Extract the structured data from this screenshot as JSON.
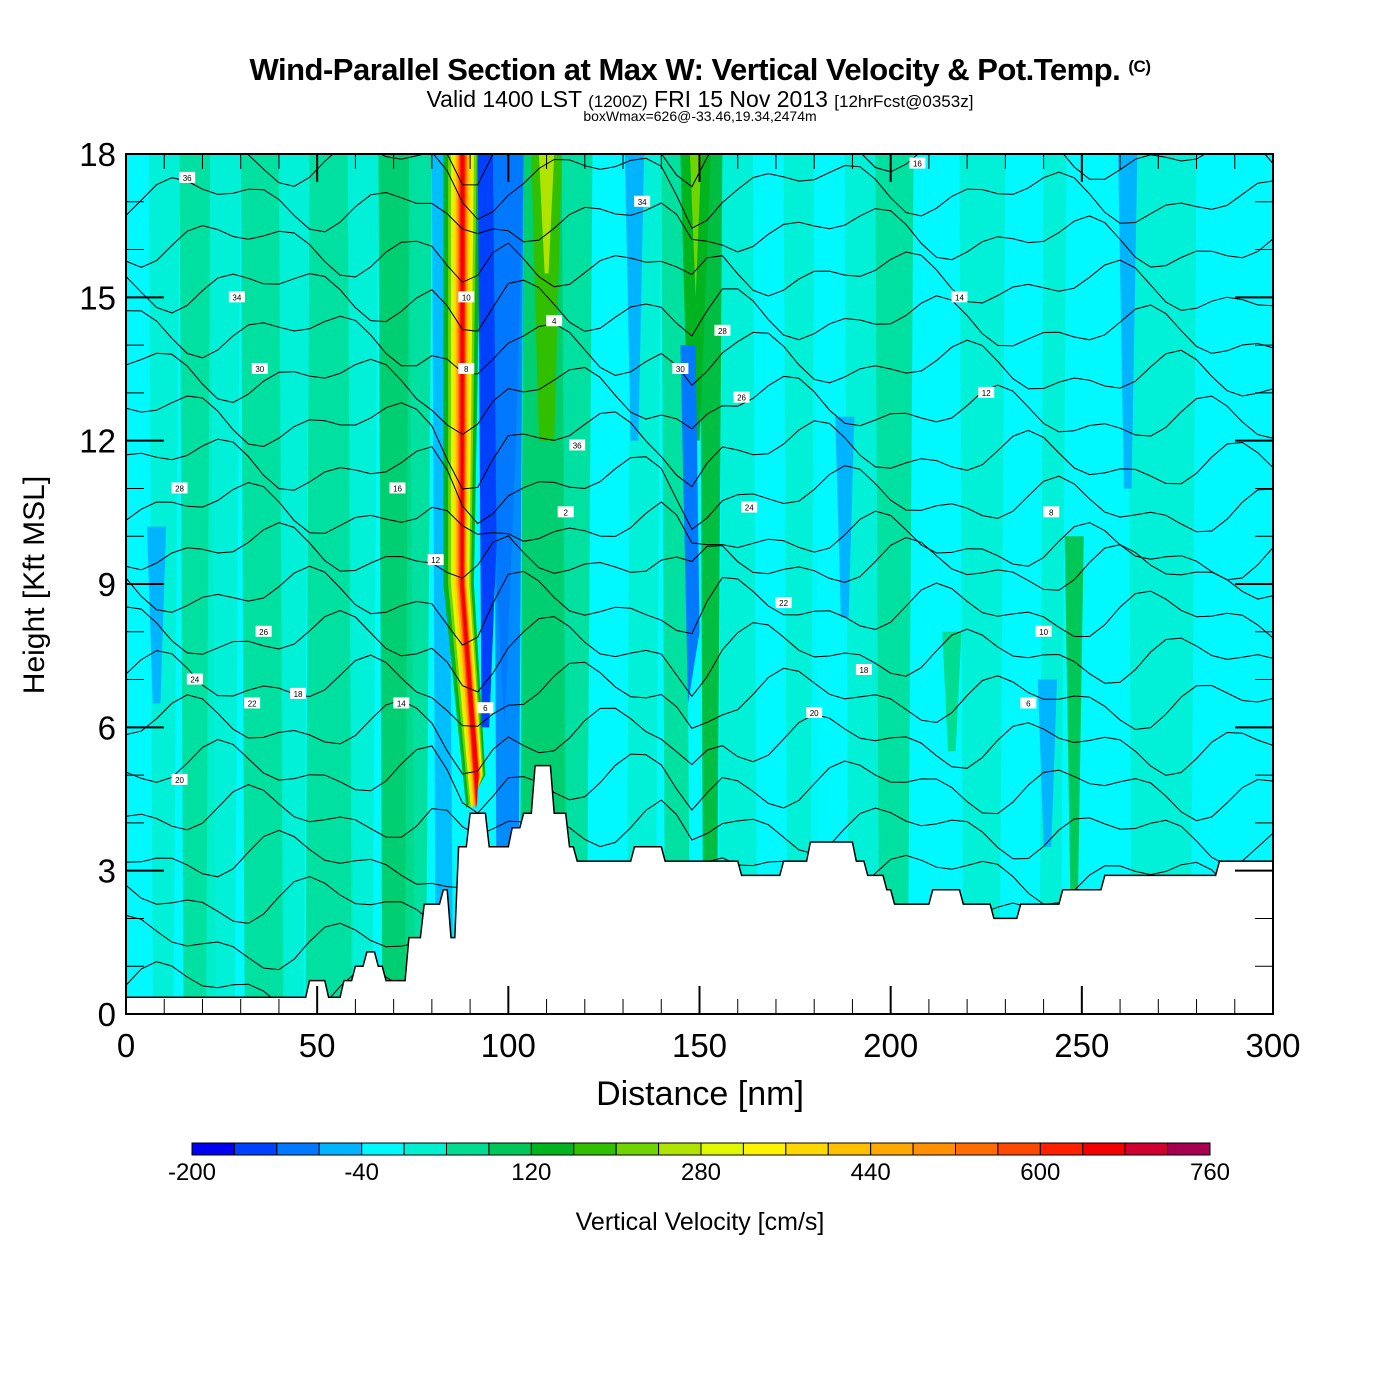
{
  "header": {
    "title": "Wind-Parallel Section at Max W: Vertical Velocity & Pot.Temp.",
    "copyright": "(C)",
    "valid_prefix": "Valid 1400 LST",
    "valid_utc": "(1200Z)",
    "valid_date": "FRI 15 Nov 2013",
    "forecast": "[12hrFcst@0353z]",
    "box_info": "boxWmax=626@-33.46,19.34,2474m"
  },
  "chart_data": {
    "type": "heatmap",
    "title": "Wind-Parallel Section at Max W: Vertical Velocity & Pot.Temp.",
    "xlabel": "Distance [nm]",
    "ylabel": "Height [Kft MSL]",
    "xlim": [
      0,
      300
    ],
    "ylim": [
      0,
      18
    ],
    "x_ticks": [
      "0",
      "50",
      "100",
      "150",
      "200",
      "250",
      "300"
    ],
    "y_ticks": [
      "0",
      "3",
      "6",
      "9",
      "12",
      "15",
      "18"
    ],
    "colorbar": {
      "label": "Vertical Velocity [cm/s]",
      "min": -200,
      "max": 760,
      "step": 40,
      "tick_labels": [
        "-200",
        "-40",
        "120",
        "280",
        "440",
        "600",
        "760"
      ],
      "colors": [
        "#0000f0",
        "#0040ff",
        "#0078ff",
        "#00b4ff",
        "#00f8ff",
        "#00f0d0",
        "#00dc90",
        "#00c858",
        "#00b420",
        "#30c000",
        "#70d400",
        "#b0e400",
        "#e0f800",
        "#fff400",
        "#ffd800",
        "#ffc000",
        "#ffa800",
        "#ff9000",
        "#ff6c00",
        "#ff4800",
        "#ff2000",
        "#f40000",
        "#d00030",
        "#a80050"
      ]
    },
    "w_maximum": {
      "distance_nm": 88,
      "height_kft": [
        6,
        18
      ],
      "value_cm_s": 626
    },
    "w_features": [
      {
        "distance_nm": 88,
        "value_cm_s": 626,
        "note": "strong updraft column"
      },
      {
        "distance_nm": 94,
        "value_cm_s": -160,
        "note": "downdraft"
      },
      {
        "distance_nm": 110,
        "value_cm_s": 240,
        "note": "upper updraft"
      },
      {
        "distance_nm": 148,
        "value_cm_s": 200,
        "note": "upper updraft"
      },
      {
        "distance_nm": 147,
        "value_cm_s": -120,
        "note": "downdraft"
      },
      {
        "distance_nm": 248,
        "value_cm_s": 120,
        "note": "updraft"
      }
    ],
    "contour_labels": [
      "36",
      "34",
      "30",
      "28",
      "26",
      "24",
      "22",
      "20",
      "18",
      "16",
      "14",
      "12",
      "10",
      "8",
      "6",
      "4",
      "2"
    ],
    "terrain_kft": [
      [
        0,
        0.35
      ],
      [
        47,
        0.35
      ],
      [
        48,
        0.7
      ],
      [
        52,
        0.7
      ],
      [
        53,
        0.35
      ],
      [
        56,
        0.35
      ],
      [
        57,
        0.7
      ],
      [
        59,
        0.7
      ],
      [
        60,
        1.0
      ],
      [
        62,
        1.0
      ],
      [
        63,
        1.3
      ],
      [
        65,
        1.3
      ],
      [
        66,
        1.0
      ],
      [
        67,
        1.0
      ],
      [
        68,
        0.7
      ],
      [
        73,
        0.7
      ],
      [
        74,
        1.6
      ],
      [
        77,
        1.6
      ],
      [
        78,
        2.3
      ],
      [
        82,
        2.3
      ],
      [
        83,
        2.6
      ],
      [
        84,
        2.6
      ],
      [
        85,
        1.6
      ],
      [
        86,
        1.6
      ],
      [
        87,
        3.5
      ],
      [
        89,
        3.5
      ],
      [
        90,
        4.2
      ],
      [
        94,
        4.2
      ],
      [
        95,
        3.5
      ],
      [
        100,
        3.5
      ],
      [
        101,
        3.9
      ],
      [
        103,
        3.9
      ],
      [
        104,
        4.2
      ],
      [
        106,
        4.2
      ],
      [
        107,
        5.2
      ],
      [
        111,
        5.2
      ],
      [
        112,
        4.2
      ],
      [
        115,
        4.2
      ],
      [
        116,
        3.5
      ],
      [
        117,
        3.5
      ],
      [
        118,
        3.2
      ],
      [
        132,
        3.2
      ],
      [
        133,
        3.5
      ],
      [
        140,
        3.5
      ],
      [
        141,
        3.2
      ],
      [
        160,
        3.2
      ],
      [
        161,
        2.9
      ],
      [
        171,
        2.9
      ],
      [
        172,
        3.2
      ],
      [
        178,
        3.2
      ],
      [
        179,
        3.6
      ],
      [
        190,
        3.6
      ],
      [
        191,
        3.2
      ],
      [
        193,
        3.2
      ],
      [
        194,
        2.9
      ],
      [
        198,
        2.9
      ],
      [
        199,
        2.6
      ],
      [
        200,
        2.6
      ],
      [
        201,
        2.3
      ],
      [
        210,
        2.3
      ],
      [
        211,
        2.6
      ],
      [
        218,
        2.6
      ],
      [
        219,
        2.3
      ],
      [
        226,
        2.3
      ],
      [
        227,
        2.0
      ],
      [
        233,
        2.0
      ],
      [
        234,
        2.3
      ],
      [
        244,
        2.3
      ],
      [
        245,
        2.6
      ],
      [
        255,
        2.6
      ],
      [
        256,
        2.9
      ],
      [
        285,
        2.9
      ],
      [
        286,
        3.2
      ],
      [
        300,
        3.2
      ]
    ]
  }
}
